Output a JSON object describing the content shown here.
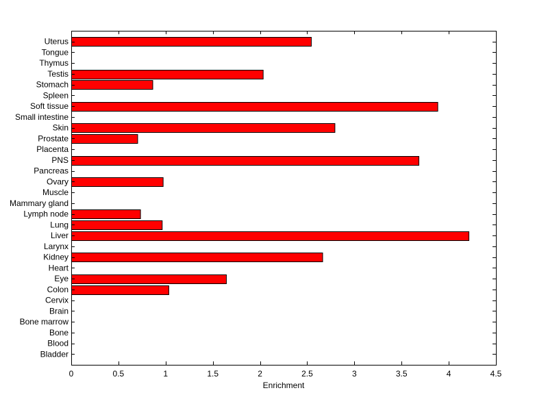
{
  "chart_data": {
    "type": "bar",
    "orientation": "horizontal",
    "title": "",
    "xlabel": "Enrichment",
    "ylabel": "",
    "xlim": [
      0,
      4.5
    ],
    "xticks": [
      0,
      0.5,
      1,
      1.5,
      2,
      2.5,
      3,
      3.5,
      4,
      4.5
    ],
    "xtick_labels": [
      "0",
      "0.5",
      "1",
      "1.5",
      "2",
      "2.5",
      "3",
      "3.5",
      "4",
      "4.5"
    ],
    "grid": false,
    "bar_color": "#ff0000",
    "edge_color": "#000000",
    "categories": [
      "Bladder",
      "Blood",
      "Bone",
      "Bone marrow",
      "Brain",
      "Cervix",
      "Colon",
      "Eye",
      "Heart",
      "Kidney",
      "Larynx",
      "Liver",
      "Lung",
      "Lymph node",
      "Mammary gland",
      "Muscle",
      "Ovary",
      "Pancreas",
      "PNS",
      "Placenta",
      "Prostate",
      "Skin",
      "Small intestine",
      "Soft tissue",
      "Spleen",
      "Stomach",
      "Testis",
      "Thymus",
      "Tongue",
      "Uterus"
    ],
    "values": [
      0,
      0,
      0,
      0,
      0,
      0,
      1.03,
      1.64,
      0,
      2.66,
      0,
      4.21,
      0.96,
      0.73,
      0,
      0,
      0.97,
      0,
      3.68,
      0,
      0.7,
      2.79,
      0,
      3.88,
      0,
      0.86,
      2.03,
      0,
      0,
      2.54
    ]
  }
}
